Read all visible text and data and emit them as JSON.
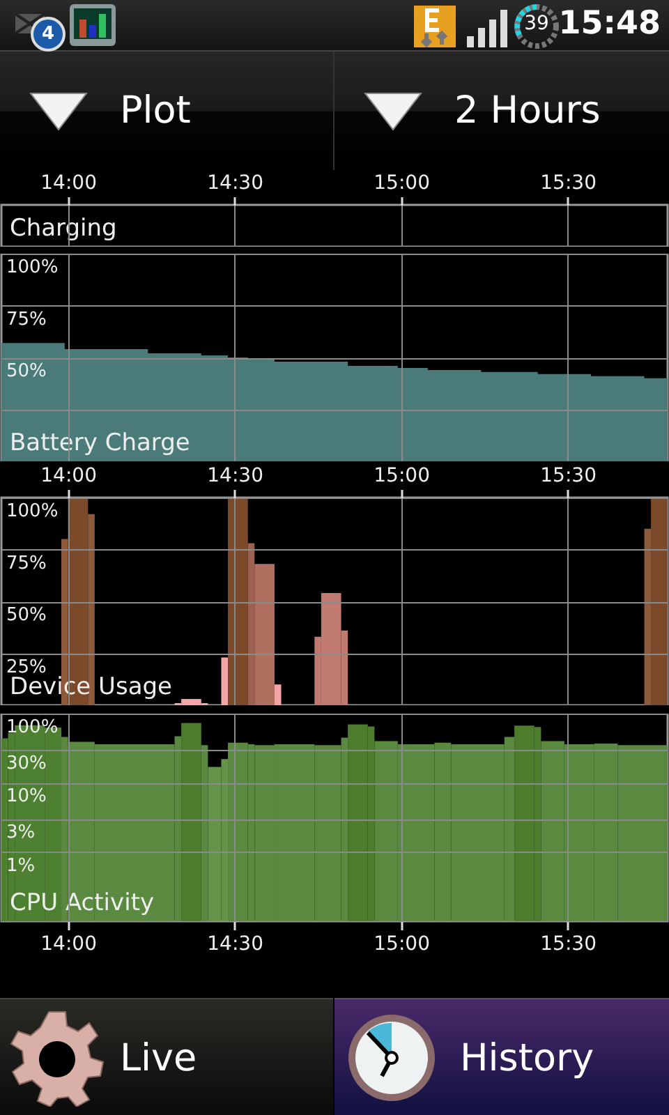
{
  "chart_data": [
    {
      "type": "other",
      "annotations": [
        "15:48",
        "39",
        "4",
        "Plot",
        "2 Hours",
        "Live",
        "History"
      ]
    },
    {
      "type": "area",
      "title": "Battery Charge",
      "annotations": [
        "Charging"
      ],
      "x": [
        13.8,
        13.99,
        14.08,
        14.24,
        14.4,
        14.48,
        14.54,
        14.62,
        14.74,
        14.84,
        14.99,
        15.08,
        15.15,
        15.24,
        15.41,
        15.57,
        15.73,
        15.8
      ],
      "values": [
        57,
        54,
        54,
        52,
        51,
        50,
        49,
        48,
        48,
        46,
        45,
        44,
        44,
        43,
        42,
        41,
        40,
        40
      ],
      "color": "#4b7b79",
      "xlim": [
        13.8,
        15.8
      ],
      "xticks": [
        {
          "value": 14,
          "label": "14:00"
        },
        {
          "value": 14.5,
          "label": "14:30"
        },
        {
          "value": 15,
          "label": "15:00"
        },
        {
          "value": 15.5,
          "label": "15:30"
        }
      ],
      "ylim": [
        0,
        100
      ],
      "yticks": [
        {
          "value": 25,
          "label": null
        },
        {
          "value": 50,
          "label": "50%"
        },
        {
          "value": 75,
          "label": "75%"
        },
        {
          "value": 100,
          "label": "100%"
        }
      ],
      "grid": true
    },
    {
      "type": "histogram",
      "title": "Device Usage",
      "bins": [
        13.98,
        14.0,
        14.06,
        14.08,
        14.32,
        14.34,
        14.4,
        14.42,
        14.46,
        14.48,
        14.54,
        14.56,
        14.62,
        14.64,
        14.74,
        14.76,
        14.82,
        14.84,
        15.73,
        15.75,
        15.8
      ],
      "values": [
        80,
        100,
        92,
        0,
        1,
        3,
        1,
        0,
        23,
        100,
        78,
        68,
        10,
        0,
        33,
        54,
        36,
        0,
        85,
        100
      ],
      "colors": [
        "#8e5a3c",
        "#7b4a2a",
        "#8e5a3c",
        "#7b4a2a",
        "#f4a6a6",
        "#f4a6a6",
        "#f4a6a6",
        "#7b4a2a",
        "#f4a6a6",
        "#7b4a2a",
        "#9c6150",
        "#b07060",
        "#f4a6a6",
        "#7b4a2a",
        "#c07a70",
        "#c07a70",
        "#c07a70",
        "#7b4a2a",
        "#8e5a3c",
        "#7b4a2a"
      ],
      "xlim": [
        13.8,
        15.8
      ],
      "xticks": [
        {
          "value": 14,
          "label": "14:00"
        },
        {
          "value": 14.5,
          "label": "14:30"
        },
        {
          "value": 15,
          "label": "15:00"
        },
        {
          "value": 15.5,
          "label": "15:30"
        }
      ],
      "ylim": [
        0,
        100
      ],
      "yticks": [
        {
          "value": 25,
          "label": "25%"
        },
        {
          "value": 50,
          "label": "50%"
        },
        {
          "value": 75,
          "label": "75%"
        },
        {
          "value": 100,
          "label": "100%"
        }
      ],
      "grid": true
    },
    {
      "type": "histogram",
      "title": "CPU Activity",
      "bins": [
        13.8,
        13.82,
        13.84,
        13.93,
        13.98,
        14.0,
        14.08,
        14.32,
        14.34,
        14.4,
        14.42,
        14.46,
        14.48,
        14.54,
        14.56,
        14.62,
        14.74,
        14.82,
        14.84,
        14.9,
        14.92,
        14.99,
        15.1,
        15.15,
        15.31,
        15.34,
        15.4,
        15.42,
        15.49,
        15.58,
        15.65,
        15.8
      ],
      "values": [
        44,
        53,
        68,
        63,
        46,
        39,
        36,
        47,
        73,
        35,
        17,
        22,
        38,
        36,
        35,
        36,
        35,
        45,
        70,
        65,
        40,
        36,
        38,
        36,
        46,
        67,
        64,
        40,
        36,
        37,
        35
      ],
      "colors": [
        "#4e8032",
        "#4e8032",
        "#4e8032",
        "#4e8032",
        "#5a8a40",
        "#5a8a40",
        "#5a8a40",
        "#5a8a40",
        "#4c7c2c",
        "#5a8a40",
        "#64944a",
        "#64944a",
        "#5a8a40",
        "#5a8a40",
        "#5a8a40",
        "#5a8a40",
        "#5a8a40",
        "#5a8a40",
        "#4c7c2c",
        "#4c7c2c",
        "#5a8a40",
        "#5a8a40",
        "#5a8a40",
        "#5a8a40",
        "#5a8a40",
        "#4c7c2c",
        "#4c7c2c",
        "#5a8a40",
        "#5a8a40",
        "#5a8a40",
        "#5a8a40"
      ],
      "xlim": [
        13.8,
        15.8
      ],
      "xticks": [
        {
          "value": 14,
          "label": "14:00"
        },
        {
          "value": 14.5,
          "label": "14:30"
        },
        {
          "value": 15,
          "label": "15:00"
        },
        {
          "value": 15.5,
          "label": "15:30"
        }
      ],
      "ylim": [
        0.1,
        100
      ],
      "yticks": [
        {
          "value": 1,
          "label": "1%"
        },
        {
          "value": 3,
          "label": "3%"
        },
        {
          "value": 10,
          "label": "10%"
        },
        {
          "value": 30,
          "label": "30%"
        },
        {
          "value": 100,
          "label": "100%"
        }
      ],
      "log": true,
      "grid": true
    }
  ]
}
